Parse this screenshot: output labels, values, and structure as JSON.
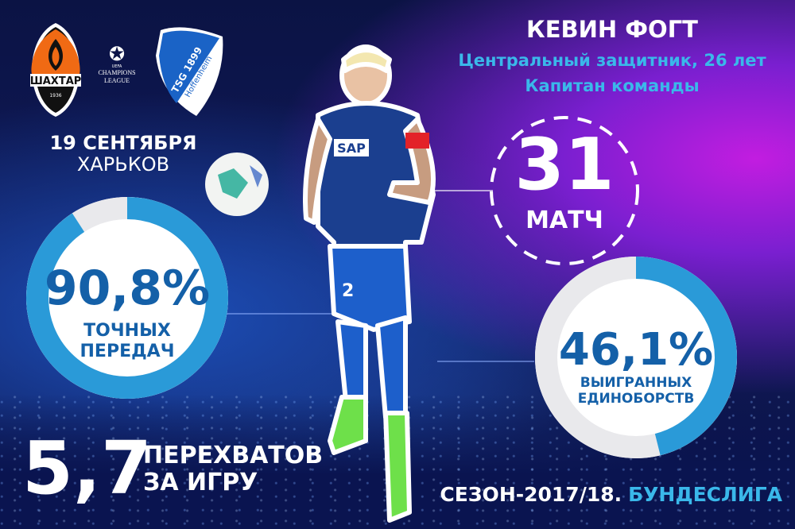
{
  "logos": {
    "home": "ШАХТАР",
    "home_year": "1936",
    "competition": "CHAMPIONS LEAGUE",
    "competition_sub": "UEFA",
    "away_line1": "TSG 1899",
    "away_line2": "Hoffenheim"
  },
  "match": {
    "date": "19 СЕНТЯБРЯ",
    "city": "ХАРЬКОВ"
  },
  "player": {
    "name": "КЕВИН ФОГТ",
    "position": "Центральный защитник, 26 лет",
    "role": "Капитан команды",
    "shirt_sponsor": "SAP",
    "number": "2"
  },
  "matches": {
    "value": "31",
    "label": "МАТЧ"
  },
  "passes": {
    "value_text": "90,8%",
    "percent": 90.8,
    "label1": "ТОЧНЫХ",
    "label2": "ПЕРЕДАЧ"
  },
  "duels": {
    "value_text": "46,1%",
    "percent": 46.1,
    "label1": "ВЫИГРАННЫХ",
    "label2": "ЕДИНОБОРСТВ"
  },
  "interceptions": {
    "value": "5,7",
    "label1": "ПЕРЕХВАТОВ",
    "label2": "ЗА ИГРУ"
  },
  "season": {
    "prefix": "СЕЗОН-2017/18.",
    "league": "БУНДЕСЛИГА"
  },
  "colors": {
    "ring_fill": "#2a9ad8",
    "ring_empty": "#e9e9ec",
    "text_blue": "#1460a8",
    "accent_cyan": "#3ab8ea",
    "shakhtar_orange": "#f06a14",
    "hoffenheim_blue": "#1a63c6"
  }
}
